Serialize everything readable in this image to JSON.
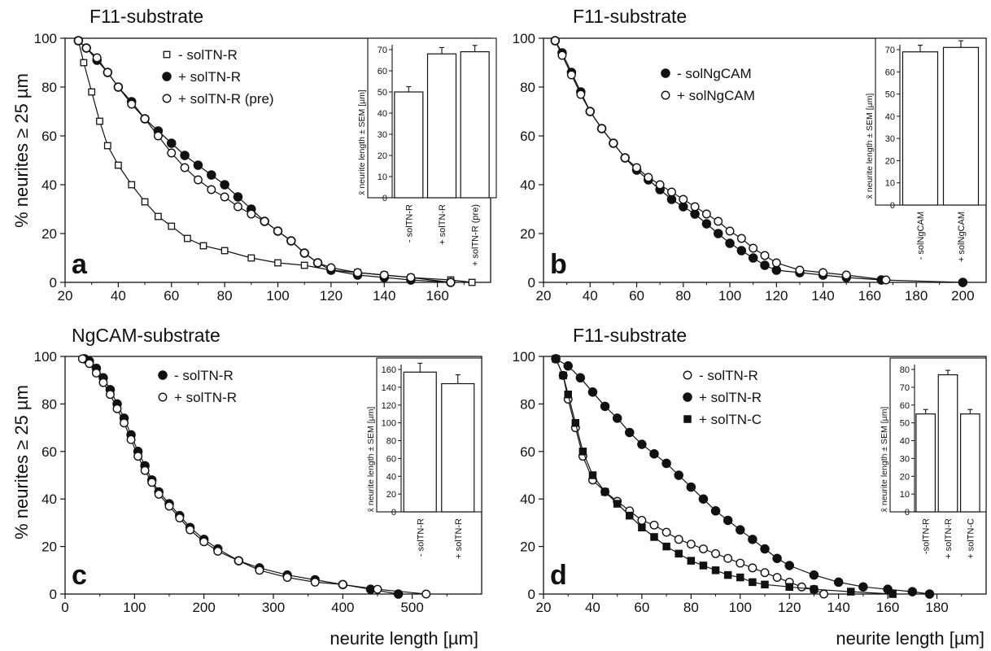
{
  "figure": {
    "shared_ylabel": "% neurites ≥ 25 µm",
    "shared_xlabel": "neurite length [µm]"
  },
  "chart_data": [
    {
      "type": "line",
      "panel": "a",
      "title": "F11-substrate",
      "xlim": [
        20,
        180
      ],
      "ylim": [
        0,
        100
      ],
      "xticks": [
        20,
        40,
        60,
        80,
        100,
        120,
        140,
        160
      ],
      "yticks": [
        0,
        20,
        40,
        60,
        80,
        100
      ],
      "series": [
        {
          "name": "- solTN-R",
          "marker": "open-square",
          "x": [
            25,
            27,
            30,
            33,
            36,
            40,
            45,
            50,
            55,
            60,
            66,
            72,
            80,
            90,
            100,
            110,
            120,
            130,
            140,
            150,
            165,
            173
          ],
          "y": [
            99,
            90,
            78,
            66,
            56,
            48,
            40,
            33,
            27,
            23,
            18,
            15,
            13,
            10,
            8,
            7,
            5,
            4,
            3,
            2,
            1,
            0
          ]
        },
        {
          "name": "+ solTN-R",
          "marker": "filled-circle",
          "x": [
            25,
            28,
            32,
            36,
            40,
            45,
            50,
            55,
            60,
            65,
            70,
            75,
            80,
            85,
            90,
            95,
            100,
            105,
            110,
            115,
            120,
            130,
            140,
            150,
            165
          ],
          "y": [
            99,
            96,
            91,
            86,
            80,
            74,
            67,
            62,
            57,
            52,
            48,
            44,
            40,
            35,
            30,
            25,
            21,
            17,
            12,
            8,
            5,
            3,
            2,
            1,
            0
          ]
        },
        {
          "name": "+ solTN-R (pre)",
          "marker": "open-circle",
          "x": [
            25,
            28,
            32,
            36,
            40,
            45,
            50,
            55,
            60,
            65,
            70,
            75,
            80,
            85,
            90,
            95,
            100,
            105,
            110,
            115,
            120,
            130,
            140,
            150,
            165
          ],
          "y": [
            99,
            96,
            92,
            86,
            80,
            73,
            67,
            60,
            53,
            47,
            42,
            38,
            35,
            31,
            28,
            25,
            21,
            17,
            12,
            8,
            6,
            4,
            3,
            2,
            0
          ]
        }
      ],
      "inset": {
        "type": "bar",
        "ylabel": "x̄ neurite length ± SEM [µm]",
        "ylim": [
          0,
          70
        ],
        "yticks": [
          0,
          10,
          20,
          30,
          40,
          50,
          60,
          70
        ],
        "categories": [
          "- solTN-R",
          "+ solTN-R",
          "+ solTN-R (pre)"
        ],
        "values": [
          50,
          68,
          69
        ],
        "errors": [
          2.5,
          3,
          3
        ]
      }
    },
    {
      "type": "line",
      "panel": "b",
      "title": "F11-substrate",
      "xlim": [
        20,
        210
      ],
      "ylim": [
        0,
        100
      ],
      "xticks": [
        20,
        40,
        60,
        80,
        100,
        120,
        140,
        160,
        180,
        200
      ],
      "yticks": [
        0,
        20,
        40,
        60,
        80,
        100
      ],
      "series": [
        {
          "name": "- solNgCAM",
          "marker": "filled-circle",
          "x": [
            25,
            28,
            32,
            36,
            40,
            45,
            50,
            55,
            60,
            65,
            70,
            75,
            80,
            85,
            90,
            95,
            100,
            105,
            110,
            115,
            120,
            130,
            140,
            150,
            165,
            200
          ],
          "y": [
            99,
            94,
            86,
            78,
            70,
            63,
            57,
            51,
            46,
            42,
            38,
            34,
            31,
            28,
            24,
            20,
            16,
            13,
            10,
            7,
            5,
            4,
            3,
            2,
            1,
            0
          ]
        },
        {
          "name": "+ solNgCAM",
          "marker": "open-circle",
          "x": [
            25,
            28,
            32,
            36,
            40,
            45,
            50,
            55,
            60,
            65,
            70,
            75,
            80,
            85,
            90,
            95,
            100,
            105,
            110,
            115,
            120,
            130,
            140,
            150,
            167
          ],
          "y": [
            99,
            93,
            85,
            77,
            70,
            63,
            57,
            51,
            47,
            43,
            40,
            37,
            34,
            31,
            28,
            25,
            21,
            18,
            14,
            11,
            8,
            5,
            4,
            3,
            1
          ]
        }
      ],
      "inset": {
        "type": "bar",
        "ylabel": "x̄ neurite length ± SEM [µm]",
        "ylim": [
          0,
          70
        ],
        "yticks": [
          0,
          10,
          20,
          30,
          40,
          50,
          60,
          70
        ],
        "categories": [
          "- solNgCAM",
          "+ solNgCAM"
        ],
        "values": [
          69,
          71
        ],
        "errors": [
          3,
          3
        ]
      }
    },
    {
      "type": "line",
      "panel": "c",
      "title": "NgCAM-substrate",
      "xlim": [
        0,
        600
      ],
      "ylim": [
        0,
        100
      ],
      "xticks": [
        0,
        100,
        200,
        300,
        400,
        500
      ],
      "yticks": [
        0,
        20,
        40,
        60,
        80,
        100
      ],
      "series": [
        {
          "name": "- solTN-R",
          "marker": "filled-circle",
          "x": [
            28,
            35,
            45,
            55,
            65,
            75,
            85,
            95,
            105,
            115,
            125,
            135,
            150,
            165,
            180,
            200,
            220,
            250,
            280,
            320,
            360,
            400,
            440,
            480
          ],
          "y": [
            99,
            98,
            95,
            91,
            86,
            80,
            74,
            67,
            60,
            54,
            48,
            43,
            38,
            33,
            28,
            23,
            19,
            14,
            11,
            8,
            6,
            4,
            2,
            0
          ]
        },
        {
          "name": "+ solTN-R",
          "marker": "open-circle",
          "x": [
            25,
            35,
            45,
            55,
            65,
            75,
            85,
            95,
            105,
            115,
            125,
            135,
            150,
            165,
            180,
            200,
            220,
            250,
            280,
            320,
            360,
            400,
            450,
            520
          ],
          "y": [
            99,
            97,
            93,
            89,
            84,
            78,
            72,
            65,
            58,
            52,
            47,
            42,
            37,
            32,
            27,
            22,
            18,
            14,
            10,
            7,
            5,
            4,
            2,
            0
          ]
        }
      ],
      "inset": {
        "type": "bar",
        "ylabel": "x̄ neurite length ± SEM [µm]",
        "ylim": [
          0,
          160
        ],
        "yticks": [
          0,
          20,
          40,
          60,
          80,
          100,
          120,
          140,
          160
        ],
        "categories": [
          "- solTN-R",
          "+ solTN-R"
        ],
        "values": [
          157,
          144
        ],
        "errors": [
          10,
          10
        ]
      }
    },
    {
      "type": "line",
      "panel": "d",
      "title": "F11-substrate",
      "xlim": [
        20,
        200
      ],
      "ylim": [
        0,
        100
      ],
      "xticks": [
        20,
        40,
        60,
        80,
        100,
        120,
        140,
        160,
        180
      ],
      "yticks": [
        0,
        20,
        40,
        60,
        80,
        100
      ],
      "series": [
        {
          "name": "- solTN-R",
          "marker": "open-circle",
          "x": [
            25,
            28,
            30,
            33,
            36,
            40,
            45,
            50,
            55,
            60,
            65,
            70,
            75,
            80,
            85,
            90,
            95,
            100,
            105,
            110,
            115,
            120,
            125,
            130,
            134
          ],
          "y": [
            99,
            92,
            82,
            70,
            58,
            48,
            43,
            39,
            35,
            31,
            29,
            26,
            23,
            21,
            19,
            17,
            15,
            13,
            11,
            9,
            7,
            5,
            3,
            2,
            0
          ]
        },
        {
          "name": "+ solTN-R",
          "marker": "filled-circle",
          "x": [
            25,
            30,
            35,
            40,
            45,
            50,
            55,
            60,
            65,
            70,
            75,
            80,
            85,
            90,
            95,
            100,
            105,
            110,
            115,
            120,
            130,
            140,
            150,
            160,
            170,
            177
          ],
          "y": [
            99,
            96,
            91,
            85,
            79,
            74,
            68,
            63,
            59,
            55,
            50,
            45,
            40,
            35,
            31,
            27,
            23,
            19,
            15,
            12,
            8,
            5,
            3,
            2,
            1,
            0
          ]
        },
        {
          "name": "+ solTN-C",
          "marker": "filled-square",
          "x": [
            25,
            28,
            30,
            33,
            36,
            40,
            45,
            50,
            55,
            60,
            65,
            70,
            75,
            80,
            85,
            90,
            95,
            100,
            105,
            110,
            120,
            130,
            145,
            162
          ],
          "y": [
            99,
            92,
            84,
            72,
            60,
            50,
            43,
            38,
            33,
            28,
            24,
            20,
            17,
            14,
            12,
            10,
            8,
            7,
            5,
            4,
            3,
            2,
            1,
            0
          ]
        }
      ],
      "inset": {
        "type": "bar",
        "ylabel": "x̄ neurite length ± SEM [µm]",
        "ylim": [
          0,
          80
        ],
        "yticks": [
          0,
          10,
          20,
          30,
          40,
          50,
          60,
          70,
          80
        ],
        "categories": [
          "-solTN-R",
          "+ solTN-R",
          "+ solTN-C"
        ],
        "values": [
          55,
          77,
          55
        ],
        "errors": [
          2.5,
          2.5,
          2.5
        ]
      }
    }
  ]
}
